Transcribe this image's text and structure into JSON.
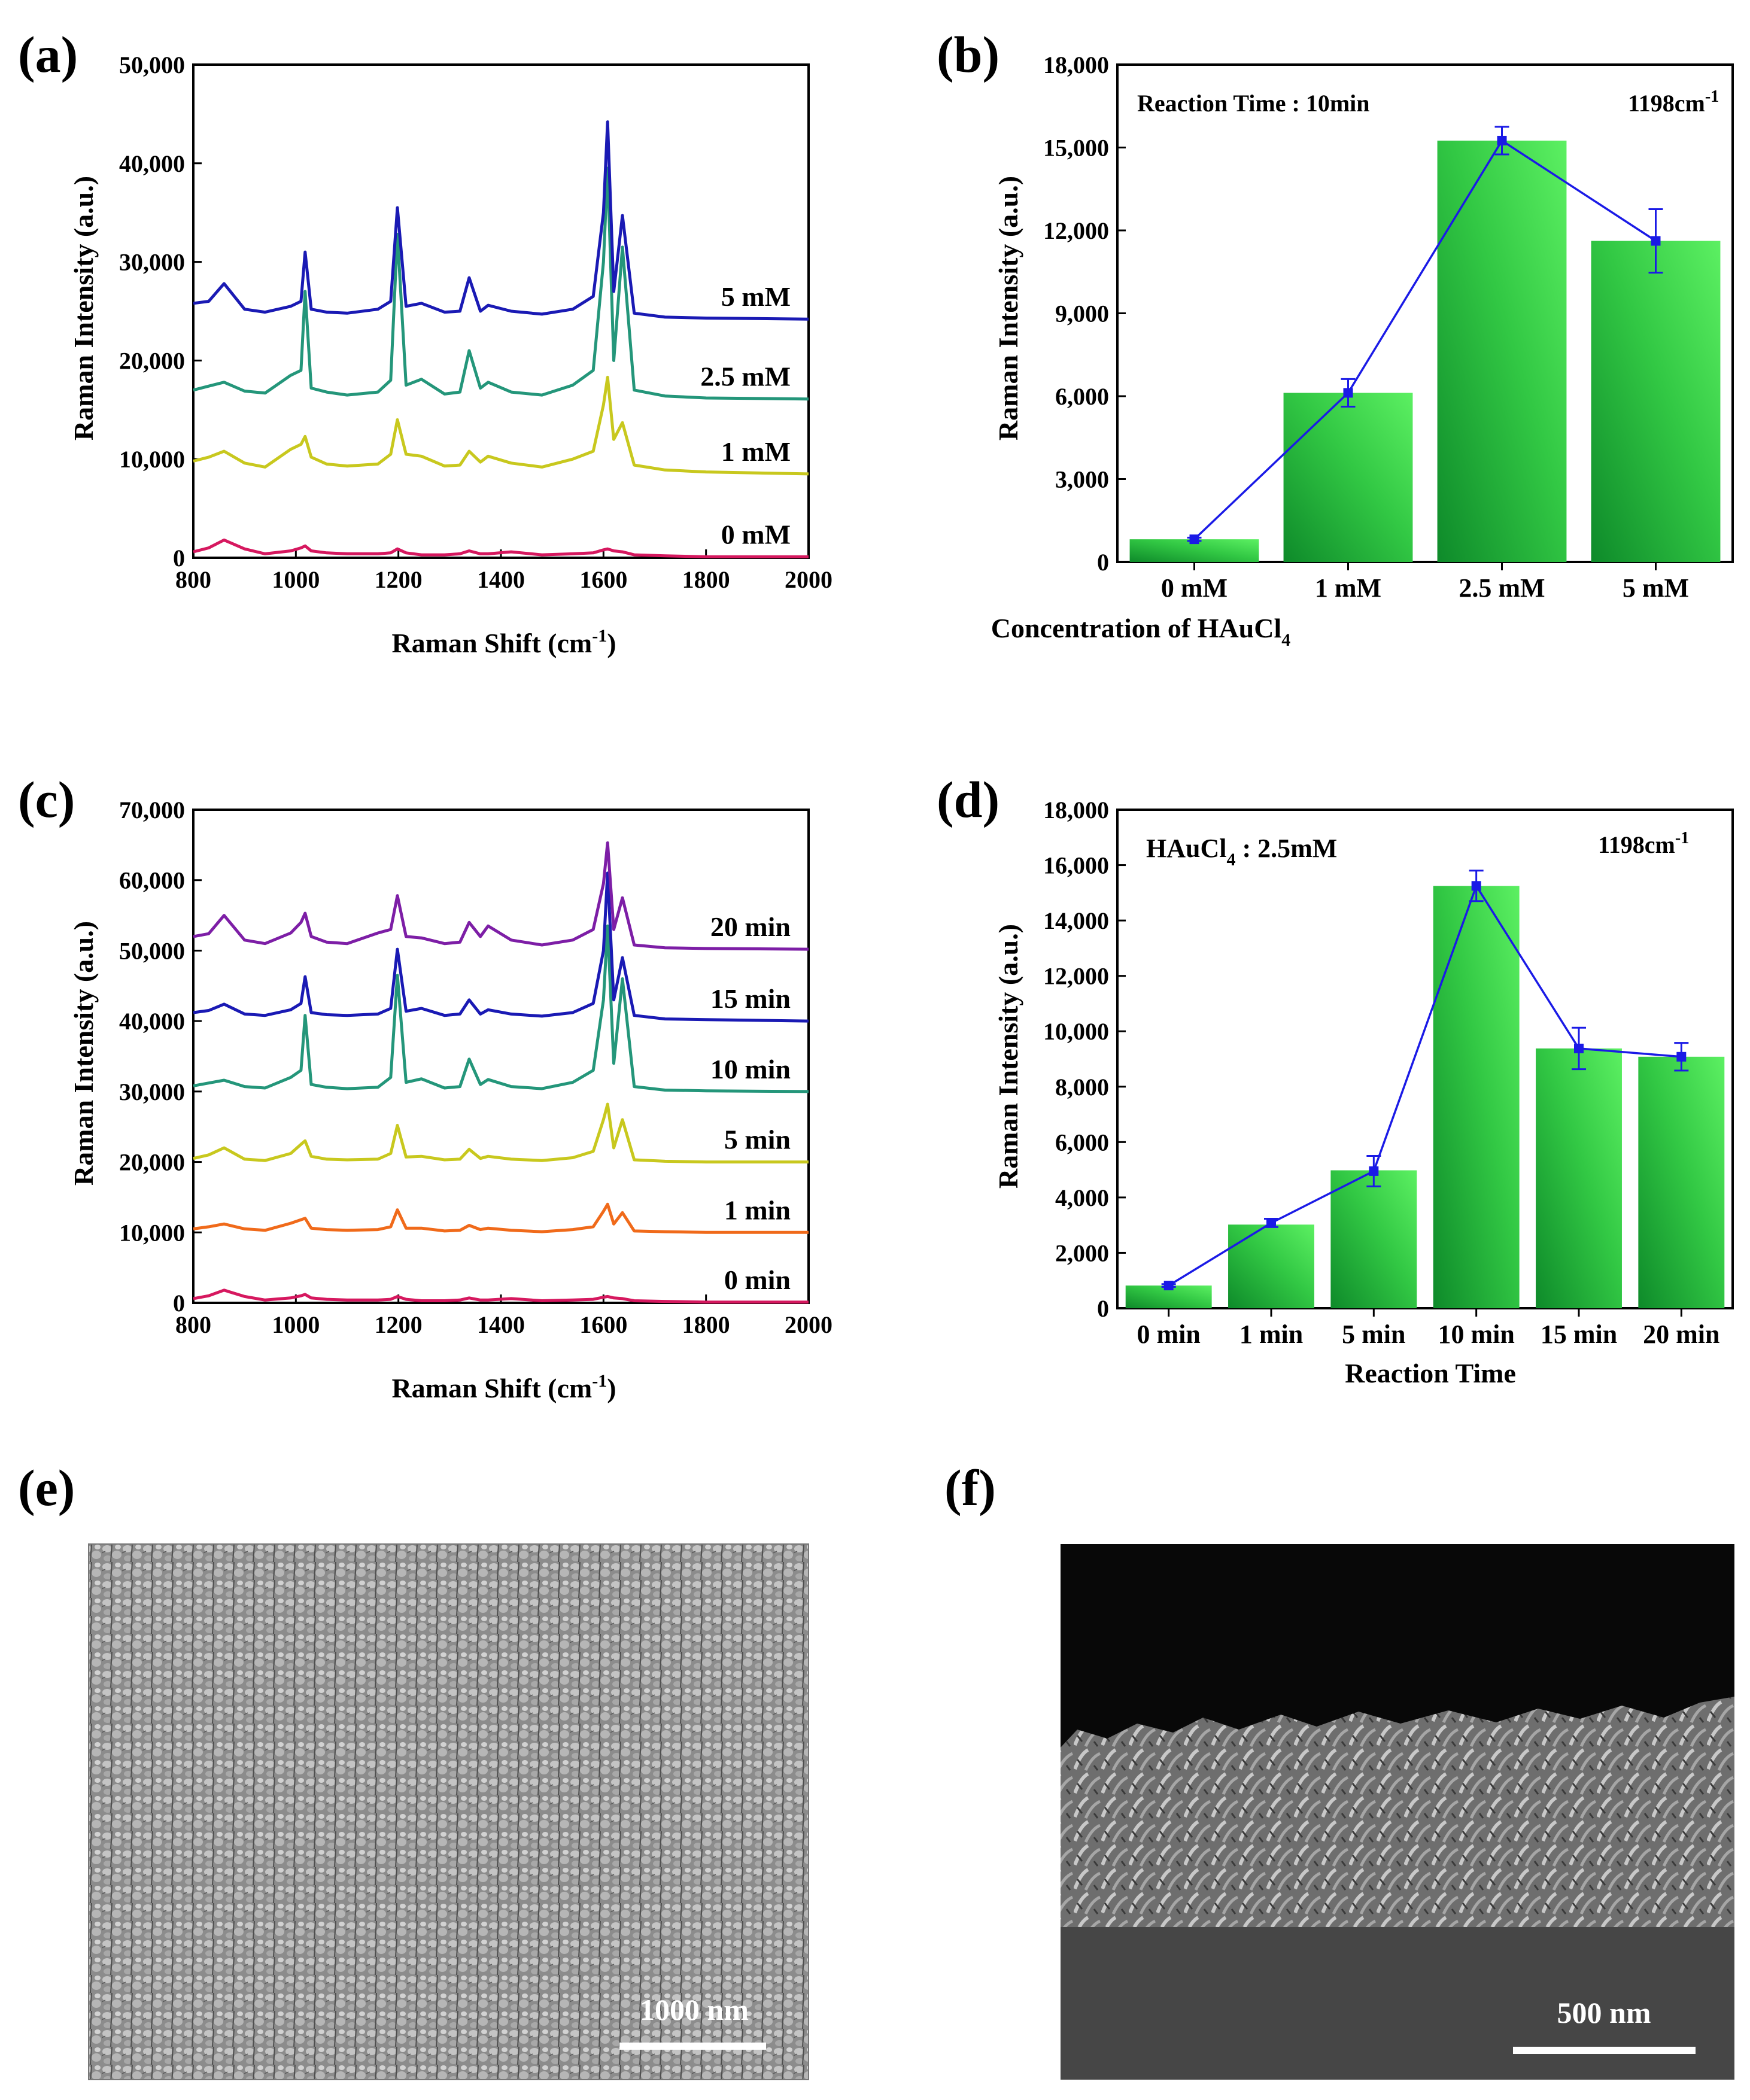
{
  "chart_data": [
    {
      "panel": "(a)",
      "type": "line",
      "title": "",
      "xlabel": "Raman Shift (cm",
      "xlabel_sup": "-1",
      "xlabel_end": ")",
      "ylabel": "Raman Intensity (a.u.)",
      "xlim": [
        800,
        2000
      ],
      "ylim": [
        0,
        50000
      ],
      "xticks": [
        "800",
        "1000",
        "1200",
        "1400",
        "1600",
        "1800",
        "2000"
      ],
      "yticks": [
        "0",
        "10,000",
        "20,000",
        "30,000",
        "40,000",
        "50,000"
      ],
      "grid": false,
      "x_breakpoints": [
        800,
        830,
        860,
        900,
        940,
        990,
        1010,
        1018,
        1030,
        1060,
        1100,
        1160,
        1185,
        1198,
        1215,
        1245,
        1290,
        1320,
        1338,
        1360,
        1375,
        1420,
        1480,
        1540,
        1580,
        1600,
        1608,
        1620,
        1637,
        1660,
        1720,
        1800,
        2000
      ],
      "series": [
        {
          "name": "0 mM",
          "label": "0 mM",
          "color": "#d6185f",
          "values": [
            600,
            1000,
            1800,
            900,
            400,
            700,
            1000,
            1200,
            700,
            500,
            400,
            400,
            500,
            900,
            500,
            300,
            300,
            400,
            700,
            400,
            400,
            600,
            300,
            400,
            500,
            800,
            900,
            700,
            600,
            300,
            200,
            100,
            100
          ]
        },
        {
          "name": "1 mM",
          "label": "1 mM",
          "color": "#c8c81e",
          "values": [
            9800,
            10200,
            10800,
            9600,
            9200,
            11000,
            11500,
            12300,
            10200,
            9500,
            9300,
            9500,
            10500,
            14000,
            10500,
            10300,
            9300,
            9400,
            10800,
            9700,
            10300,
            9600,
            9200,
            10000,
            10800,
            15500,
            18300,
            12000,
            13700,
            9400,
            8900,
            8700,
            8500
          ]
        },
        {
          "name": "2.5 mM",
          "label": "2.5 mM",
          "color": "#24967a",
          "values": [
            17000,
            17400,
            17800,
            16900,
            16700,
            18500,
            19000,
            27000,
            17200,
            16800,
            16500,
            16800,
            18000,
            32800,
            17500,
            18100,
            16600,
            16800,
            21000,
            17200,
            17800,
            16800,
            16500,
            17500,
            19000,
            30000,
            39500,
            20000,
            31500,
            17000,
            16400,
            16200,
            16100
          ]
        },
        {
          "name": "5 mM",
          "label": "5 mM",
          "color": "#1a1ab4",
          "values": [
            25800,
            26000,
            27800,
            25200,
            24900,
            25500,
            26000,
            31000,
            25200,
            24900,
            24800,
            25200,
            26000,
            35500,
            25500,
            25800,
            24900,
            25000,
            28400,
            25000,
            25600,
            25000,
            24700,
            25200,
            26500,
            35000,
            44200,
            27000,
            34700,
            24800,
            24400,
            24300,
            24200
          ]
        }
      ]
    },
    {
      "panel": "(b)",
      "type": "bar",
      "title": "",
      "xlabel": "Concentration of HAuCl",
      "xlabel_sub": "4",
      "ylabel": "Raman Intensity (a.u.)",
      "ylim": [
        0,
        18000
      ],
      "yticks": [
        "0",
        "3,000",
        "6,000",
        "9,000",
        "12,000",
        "15,000",
        "18,000"
      ],
      "categories": [
        "0 mM",
        "1 mM",
        "2.5 mM",
        "5 mM"
      ],
      "values": [
        820,
        6120,
        15250,
        11620
      ],
      "line_values": [
        820,
        6120,
        15250,
        11620
      ],
      "errors": [
        60,
        500,
        500,
        1150
      ],
      "annotation_left": "Reaction Time : 10min",
      "annotation_right": "1198cm",
      "annotation_right_sup": "-1",
      "bar_color": "#3fd93f",
      "line_color": "#1a1ae6",
      "grid": false
    },
    {
      "panel": "(c)",
      "type": "line",
      "title": "",
      "xlabel": "Raman Shift (cm",
      "xlabel_sup": "-1",
      "xlabel_end": ")",
      "ylabel": "Raman Intensity (a.u.)",
      "xlim": [
        800,
        2000
      ],
      "ylim": [
        0,
        70000
      ],
      "xticks": [
        "800",
        "1000",
        "1200",
        "1400",
        "1600",
        "1800",
        "2000"
      ],
      "yticks": [
        "0",
        "10,000",
        "20,000",
        "30,000",
        "40,000",
        "50,000",
        "60,000",
        "70,000"
      ],
      "grid": false,
      "x_breakpoints": [
        800,
        830,
        860,
        900,
        940,
        990,
        1010,
        1018,
        1030,
        1060,
        1100,
        1160,
        1185,
        1198,
        1215,
        1245,
        1290,
        1320,
        1338,
        1360,
        1375,
        1420,
        1480,
        1540,
        1580,
        1600,
        1608,
        1620,
        1637,
        1660,
        1720,
        1800,
        2000
      ],
      "series": [
        {
          "name": "0 min",
          "label": "0 min",
          "color": "#d6185f",
          "values": [
            600,
            1000,
            1800,
            900,
            400,
            700,
            1000,
            1200,
            700,
            500,
            400,
            400,
            500,
            900,
            500,
            300,
            300,
            400,
            700,
            400,
            400,
            600,
            300,
            400,
            500,
            800,
            900,
            700,
            600,
            300,
            200,
            100,
            100
          ]
        },
        {
          "name": "1 min",
          "label": "1 min",
          "color": "#f06a1a",
          "values": [
            10500,
            10800,
            11200,
            10500,
            10300,
            11300,
            11800,
            12000,
            10600,
            10400,
            10300,
            10400,
            10800,
            13200,
            10600,
            10600,
            10200,
            10300,
            11000,
            10400,
            10600,
            10300,
            10100,
            10400,
            10800,
            13000,
            14000,
            11200,
            12800,
            10200,
            10100,
            10000,
            10000
          ]
        },
        {
          "name": "5 min",
          "label": "5 min",
          "color": "#c8c81e",
          "values": [
            20500,
            21000,
            22000,
            20400,
            20200,
            21200,
            22500,
            23000,
            20800,
            20400,
            20300,
            20400,
            21200,
            25200,
            20700,
            20800,
            20300,
            20400,
            21800,
            20500,
            20800,
            20400,
            20200,
            20600,
            21500,
            26000,
            28200,
            22000,
            26000,
            20300,
            20100,
            20000,
            20000
          ]
        },
        {
          "name": "10 min",
          "label": "10 min",
          "color": "#24967a",
          "values": [
            30800,
            31200,
            31600,
            30700,
            30500,
            32000,
            33000,
            40800,
            31000,
            30600,
            30400,
            30600,
            32000,
            46500,
            31300,
            31800,
            30500,
            30700,
            34600,
            31000,
            31700,
            30700,
            30400,
            31300,
            33000,
            43000,
            53500,
            34000,
            46000,
            30700,
            30200,
            30100,
            30000
          ]
        },
        {
          "name": "15 min",
          "label": "15 min",
          "color": "#1a1ab4",
          "values": [
            41200,
            41500,
            42400,
            41000,
            40800,
            41600,
            42500,
            46300,
            41200,
            40900,
            40800,
            41000,
            41800,
            50200,
            41400,
            41800,
            40800,
            41000,
            43000,
            41000,
            41600,
            41000,
            40700,
            41200,
            42500,
            50000,
            61000,
            43000,
            49000,
            40800,
            40300,
            40200,
            40000
          ]
        },
        {
          "name": "20 min",
          "label": "20 min",
          "color": "#7d1ea6",
          "values": [
            52000,
            52400,
            55000,
            51500,
            51000,
            52500,
            54000,
            55300,
            52000,
            51200,
            51000,
            52500,
            53000,
            57800,
            52000,
            51800,
            51000,
            51200,
            54000,
            52000,
            53500,
            51500,
            50800,
            51500,
            53000,
            59500,
            65300,
            53000,
            57500,
            50800,
            50400,
            50300,
            50200
          ]
        }
      ]
    },
    {
      "panel": "(d)",
      "type": "bar",
      "title": "",
      "xlabel": "Reaction Time",
      "ylabel": "Raman Intensity (a.u.)",
      "ylim": [
        0,
        18000
      ],
      "yticks": [
        "0",
        "2,000",
        "4,000",
        "6,000",
        "8,000",
        "10,000",
        "12,000",
        "14,000",
        "16,000",
        "18,000"
      ],
      "categories": [
        "0 min",
        "1 min",
        "5 min",
        "10 min",
        "15 min",
        "20 min"
      ],
      "values": [
        820,
        3020,
        4980,
        15250,
        9380,
        9080
      ],
      "line_values": [
        820,
        3080,
        4950,
        15250,
        9380,
        9080
      ],
      "errors": [
        50,
        150,
        550,
        550,
        750,
        500
      ],
      "annotation_left": "HAuCl",
      "annotation_left_sub": "4",
      "annotation_left_end": " : 2.5mM",
      "annotation_right": "1198cm",
      "annotation_right_sup": "-1",
      "bar_color": "#3fd93f",
      "line_color": "#1a1ae6",
      "grid": false
    }
  ],
  "panels": {
    "a": "(a)",
    "b": "(b)",
    "c": "(c)",
    "d": "(d)",
    "e": "(e)",
    "f": "(f)"
  },
  "sem_e": {
    "scale_label": "1000 nm"
  },
  "sem_f": {
    "scale_label": "500 nm"
  }
}
